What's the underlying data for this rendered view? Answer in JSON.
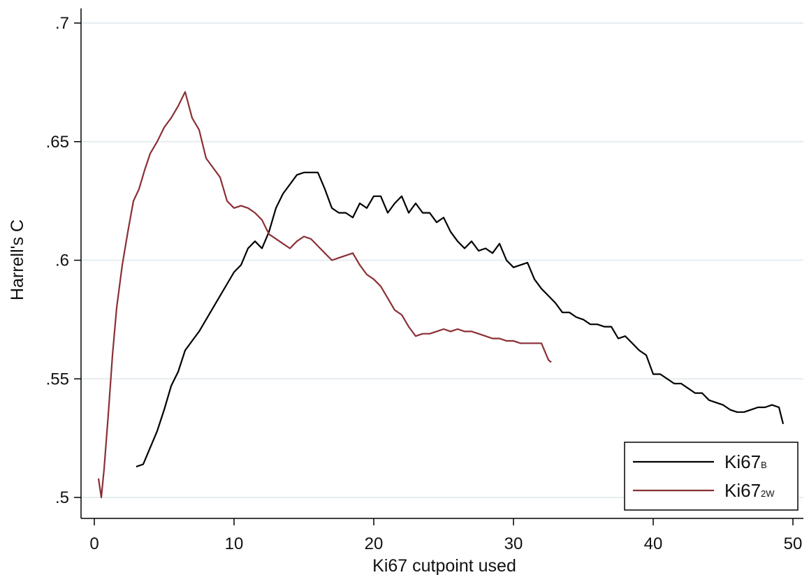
{
  "chart_data": {
    "type": "line",
    "xlabel": "Ki67 cutpoint used",
    "ylabel": "Harrell's C",
    "xlim": [
      0,
      50
    ],
    "ylim": [
      0.5,
      0.7
    ],
    "x_ticks": [
      "0",
      "10",
      "20",
      "30",
      "40",
      "50"
    ],
    "x_tick_values": [
      0,
      10,
      20,
      30,
      40,
      50
    ],
    "y_ticks": [
      ".5",
      ".55",
      ".6",
      ".65",
      ".7"
    ],
    "y_tick_values": [
      0.5,
      0.55,
      0.6,
      0.65,
      0.7
    ],
    "grid": "horizontal",
    "legend": {
      "placement": "bottom-right",
      "entries": [
        {
          "main": "Ki67",
          "sub": "B"
        },
        {
          "main": "Ki67",
          "sub": "2W"
        }
      ]
    },
    "series": [
      {
        "name": "Ki67B",
        "color": "#000000",
        "x": [
          3.0,
          3.5,
          4.0,
          4.5,
          5.0,
          5.5,
          6.0,
          6.5,
          7.0,
          7.5,
          8.0,
          8.5,
          9.0,
          9.5,
          10.0,
          10.5,
          11.0,
          11.5,
          12.0,
          12.5,
          13.0,
          13.5,
          14.0,
          14.5,
          15.0,
          15.5,
          16.0,
          16.5,
          17.0,
          17.5,
          18.0,
          18.5,
          19.0,
          19.5,
          20.0,
          20.5,
          21.0,
          21.5,
          22.0,
          22.5,
          23.0,
          23.5,
          24.0,
          24.5,
          25.0,
          25.5,
          26.0,
          26.5,
          27.0,
          27.5,
          28.0,
          28.5,
          29.0,
          29.5,
          30.0,
          30.5,
          31.0,
          31.5,
          32.0,
          32.5,
          33.0,
          33.5,
          34.0,
          34.5,
          35.0,
          35.5,
          36.0,
          36.5,
          37.0,
          37.5,
          38.0,
          38.5,
          39.0,
          39.5,
          40.0,
          40.5,
          41.0,
          41.5,
          42.0,
          42.5,
          43.0,
          43.5,
          44.0,
          44.5,
          45.0,
          45.5,
          46.0,
          46.5,
          47.0,
          47.5,
          48.0,
          48.5,
          49.0,
          49.3
        ],
        "y": [
          0.513,
          0.514,
          0.521,
          0.528,
          0.537,
          0.547,
          0.553,
          0.562,
          0.566,
          0.57,
          0.575,
          0.58,
          0.585,
          0.59,
          0.595,
          0.598,
          0.605,
          0.608,
          0.605,
          0.612,
          0.622,
          0.628,
          0.632,
          0.636,
          0.637,
          0.637,
          0.637,
          0.63,
          0.622,
          0.62,
          0.62,
          0.618,
          0.624,
          0.622,
          0.627,
          0.627,
          0.62,
          0.624,
          0.627,
          0.62,
          0.624,
          0.62,
          0.62,
          0.616,
          0.618,
          0.612,
          0.608,
          0.605,
          0.608,
          0.604,
          0.605,
          0.603,
          0.607,
          0.6,
          0.597,
          0.598,
          0.599,
          0.592,
          0.588,
          0.585,
          0.582,
          0.578,
          0.578,
          0.576,
          0.575,
          0.573,
          0.573,
          0.572,
          0.572,
          0.567,
          0.568,
          0.565,
          0.562,
          0.56,
          0.552,
          0.552,
          0.55,
          0.548,
          0.548,
          0.546,
          0.544,
          0.544,
          0.541,
          0.54,
          0.539,
          0.537,
          0.536,
          0.536,
          0.537,
          0.538,
          0.538,
          0.539,
          0.538,
          0.531
        ]
      },
      {
        "name": "Ki67_2W",
        "color": "#8b2f35",
        "x": [
          0.3,
          0.5,
          0.7,
          1.0,
          1.3,
          1.6,
          2.0,
          2.4,
          2.8,
          3.2,
          3.6,
          4.0,
          4.5,
          5.0,
          5.5,
          6.0,
          6.5,
          7.0,
          7.5,
          8.0,
          8.5,
          9.0,
          9.5,
          10.0,
          10.5,
          11.0,
          11.5,
          12.0,
          12.5,
          13.0,
          13.5,
          14.0,
          14.5,
          15.0,
          15.5,
          16.0,
          16.5,
          17.0,
          17.5,
          18.0,
          18.5,
          19.0,
          19.5,
          20.0,
          20.5,
          21.0,
          21.5,
          22.0,
          22.5,
          23.0,
          23.5,
          24.0,
          24.5,
          25.0,
          25.5,
          26.0,
          26.5,
          27.0,
          27.5,
          28.0,
          28.5,
          29.0,
          29.5,
          30.0,
          30.5,
          31.0,
          31.5,
          32.0,
          32.5,
          32.7
        ],
        "y": [
          0.508,
          0.5,
          0.512,
          0.535,
          0.56,
          0.58,
          0.598,
          0.612,
          0.625,
          0.63,
          0.638,
          0.645,
          0.65,
          0.656,
          0.66,
          0.665,
          0.671,
          0.66,
          0.655,
          0.643,
          0.639,
          0.635,
          0.625,
          0.622,
          0.623,
          0.622,
          0.62,
          0.617,
          0.611,
          0.609,
          0.607,
          0.605,
          0.608,
          0.61,
          0.609,
          0.606,
          0.603,
          0.6,
          0.601,
          0.602,
          0.603,
          0.598,
          0.594,
          0.592,
          0.589,
          0.584,
          0.579,
          0.577,
          0.572,
          0.568,
          0.569,
          0.569,
          0.57,
          0.571,
          0.57,
          0.571,
          0.57,
          0.57,
          0.569,
          0.568,
          0.567,
          0.567,
          0.566,
          0.566,
          0.565,
          0.565,
          0.565,
          0.565,
          0.558,
          0.557
        ]
      }
    ]
  }
}
